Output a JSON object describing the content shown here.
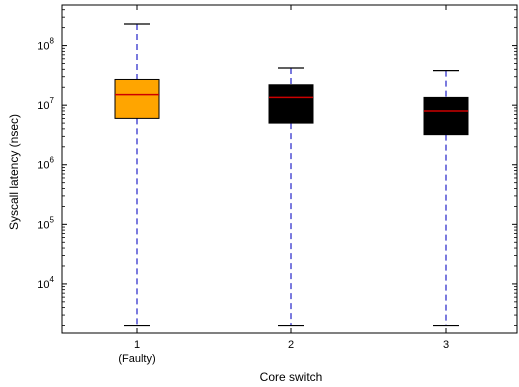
{
  "chart_data": {
    "type": "box",
    "title": "",
    "xlabel": "Core switch",
    "ylabel": "Syscall latency (nsec)",
    "y_scale": "log",
    "ylim": [
      1500,
      480000000
    ],
    "y_ticks": [
      {
        "value": 10000,
        "base": "10",
        "exp": "4"
      },
      {
        "value": 100000,
        "base": "10",
        "exp": "5"
      },
      {
        "value": 1000000,
        "base": "10",
        "exp": "6"
      },
      {
        "value": 10000000,
        "base": "10",
        "exp": "7"
      },
      {
        "value": 100000000,
        "base": "10",
        "exp": "8"
      }
    ],
    "categories": [
      "1",
      "2",
      "3"
    ],
    "category_sublabels": [
      "(Faulty)",
      "",
      ""
    ],
    "boxes": [
      {
        "category": "1",
        "whisker_low": 2000,
        "q1": 6000000,
        "median": 15000000,
        "q3": 27000000,
        "whisker_high": 230000000,
        "fill": "#FFA500"
      },
      {
        "category": "2",
        "whisker_low": 2000,
        "q1": 5000000,
        "median": 13500000,
        "q3": 22000000,
        "whisker_high": 42000000,
        "fill": "#000000"
      },
      {
        "category": "3",
        "whisker_low": 2000,
        "q1": 3200000,
        "median": 8000000,
        "q3": 13500000,
        "whisker_high": 38000000,
        "fill": "#000000"
      }
    ],
    "whisker_color": "#3333CC",
    "median_color": "#CC0000",
    "grid": false,
    "legend": "none"
  }
}
